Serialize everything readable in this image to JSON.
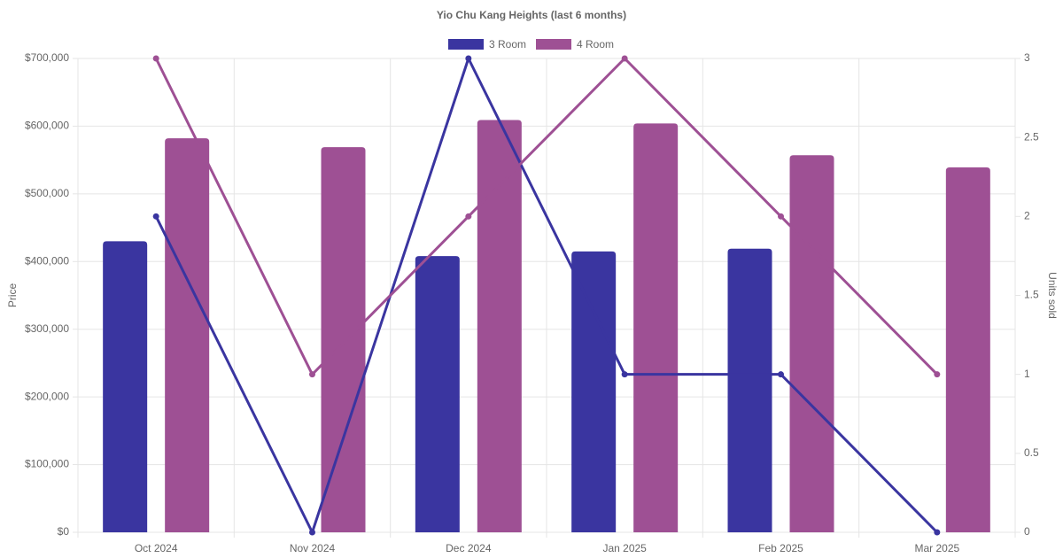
{
  "chart_data": {
    "type": "bar",
    "title": "Yio Chu Kang Heights (last 6 months)",
    "categories": [
      "Oct 2024",
      "Nov 2024",
      "Dec 2024",
      "Jan 2025",
      "Feb 2025",
      "Mar 2025"
    ],
    "y_left": {
      "label": "Price",
      "range": [
        0,
        700000
      ],
      "ticks": [
        "$0",
        "$100,000",
        "$200,000",
        "$300,000",
        "$400,000",
        "$500,000",
        "$600,000",
        "$700,000"
      ],
      "tick_values": [
        0,
        100000,
        200000,
        300000,
        400000,
        500000,
        600000,
        700000
      ]
    },
    "y_right": {
      "label": "Units sold",
      "range": [
        0,
        3
      ],
      "ticks": [
        "0",
        "0.5",
        "1",
        "1.5",
        "2",
        "2.5",
        "3"
      ],
      "tick_values": [
        0,
        0.5,
        1,
        1.5,
        2,
        2.5,
        3
      ]
    },
    "grid": true,
    "legend_position": "top-center",
    "series": [
      {
        "name": "3 Room",
        "color": "#3a35a0",
        "price": [
          430000,
          null,
          408000,
          415000,
          419000,
          null
        ],
        "units_sold": [
          2,
          0,
          3,
          1,
          1,
          0
        ]
      },
      {
        "name": "4 Room",
        "color": "#9e5094",
        "price": [
          582000,
          569000,
          609000,
          604000,
          557000,
          539000
        ],
        "units_sold": [
          3,
          1,
          2,
          3,
          2,
          1
        ]
      }
    ]
  }
}
